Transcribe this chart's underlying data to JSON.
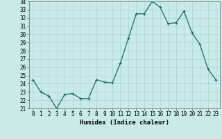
{
  "x": [
    0,
    1,
    2,
    3,
    4,
    5,
    6,
    7,
    8,
    9,
    10,
    11,
    12,
    13,
    14,
    15,
    16,
    17,
    18,
    19,
    20,
    21,
    22,
    23
  ],
  "y": [
    24.5,
    23.0,
    22.5,
    21.0,
    22.7,
    22.8,
    22.2,
    22.2,
    24.5,
    24.2,
    24.1,
    26.5,
    29.5,
    32.5,
    32.5,
    34.0,
    33.3,
    31.3,
    31.4,
    32.8,
    30.2,
    28.8,
    25.8,
    24.5
  ],
  "line_color": "#1a6b5e",
  "marker": "+",
  "marker_size": 3,
  "bg_color": "#c8ebe8",
  "grid_color": "#aad4d0",
  "xlabel": "Humidex (Indice chaleur)",
  "ylim": [
    21,
    34
  ],
  "xlim_min": -0.5,
  "xlim_max": 23.5,
  "yticks": [
    21,
    22,
    23,
    24,
    25,
    26,
    27,
    28,
    29,
    30,
    31,
    32,
    33,
    34
  ],
  "xticks": [
    0,
    1,
    2,
    3,
    4,
    5,
    6,
    7,
    8,
    9,
    10,
    11,
    12,
    13,
    14,
    15,
    16,
    17,
    18,
    19,
    20,
    21,
    22,
    23
  ],
  "xlabel_fontsize": 6.5,
  "tick_fontsize": 5.5,
  "linewidth": 0.9,
  "markeredgewidth": 0.8
}
